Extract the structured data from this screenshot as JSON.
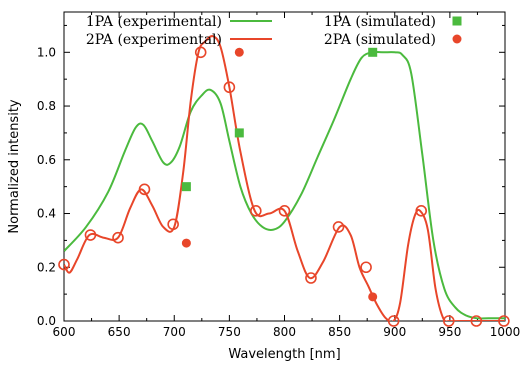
{
  "chart_data": {
    "type": "line",
    "xlabel": "Wavelength [nm]",
    "ylabel": "Normalized intensity",
    "xlim": [
      600,
      1000
    ],
    "ylim": [
      0,
      1.15
    ],
    "x_ticks": [
      "600",
      "650",
      "700",
      "750",
      "800",
      "850",
      "900",
      "950",
      "1000"
    ],
    "y_ticks": [
      "0.0",
      "0.2",
      "0.4",
      "0.6",
      "0.8",
      "1.0"
    ],
    "grid": false,
    "legend_position": "top",
    "colors": {
      "green": "#4bba3e",
      "orange": "#e8462a"
    },
    "series": [
      {
        "name": "1PA (experimental)",
        "kind": "line",
        "color": "#4bba3e",
        "x": [
          600,
          620,
          640,
          655,
          665,
          672,
          680,
          690,
          697,
          705,
          715,
          725,
          733,
          742,
          750,
          760,
          770,
          780,
          790,
          800,
          815,
          830,
          845,
          860,
          870,
          880,
          890,
          900,
          907,
          915,
          925,
          935,
          945,
          955,
          965,
          975,
          985,
          1000
        ],
        "y": [
          0.26,
          0.35,
          0.48,
          0.63,
          0.72,
          0.73,
          0.67,
          0.59,
          0.59,
          0.65,
          0.78,
          0.84,
          0.86,
          0.81,
          0.67,
          0.5,
          0.4,
          0.35,
          0.34,
          0.37,
          0.47,
          0.61,
          0.75,
          0.9,
          0.98,
          1.0,
          1.0,
          1.0,
          0.99,
          0.92,
          0.62,
          0.3,
          0.12,
          0.05,
          0.02,
          0.01,
          0.01,
          0.01
        ]
      },
      {
        "name": "2PA (experimental)",
        "kind": "line",
        "color": "#e8462a",
        "x": [
          600,
          605,
          612,
          623,
          636,
          649,
          660,
          670,
          680,
          690,
          700,
          708,
          715,
          722,
          728,
          735,
          742,
          750,
          760,
          773,
          786,
          800,
          812,
          823,
          835,
          850,
          860,
          868,
          876,
          884,
          892,
          899,
          905,
          912,
          918,
          923,
          930,
          937,
          944,
          950,
          960,
          975,
          1000
        ],
        "y": [
          0.21,
          0.18,
          0.23,
          0.32,
          0.31,
          0.31,
          0.42,
          0.49,
          0.43,
          0.35,
          0.35,
          0.55,
          0.82,
          1.0,
          1.04,
          1.06,
          1.02,
          0.87,
          0.63,
          0.41,
          0.4,
          0.41,
          0.26,
          0.16,
          0.22,
          0.35,
          0.32,
          0.2,
          0.13,
          0.06,
          0.01,
          0.0,
          0.07,
          0.28,
          0.39,
          0.41,
          0.34,
          0.12,
          0.01,
          0.0,
          0.0,
          0.0,
          0.0
        ]
      },
      {
        "name": "2PA (experimental) markers",
        "kind": "open-circles",
        "color": "#e8462a",
        "x": [
          600,
          624,
          649,
          673,
          699,
          724,
          750,
          774,
          800,
          824,
          849,
          874,
          899,
          924,
          949,
          974,
          999
        ],
        "y": [
          0.21,
          0.32,
          0.31,
          0.49,
          0.36,
          1.0,
          0.87,
          0.41,
          0.41,
          0.16,
          0.35,
          0.2,
          0.0,
          0.41,
          0.0,
          0.0,
          0.0
        ]
      },
      {
        "name": "1PA (simulated)",
        "kind": "squares",
        "color": "#4bba3e",
        "x": [
          711,
          759,
          880
        ],
        "y": [
          0.5,
          0.7,
          1.0
        ]
      },
      {
        "name": "2PA (simulated)",
        "kind": "filled-circles",
        "color": "#e8462a",
        "x": [
          711,
          759,
          880
        ],
        "y": [
          0.29,
          1.0,
          0.09
        ]
      }
    ],
    "legend": [
      {
        "label": "1PA (experimental)",
        "symbol": "line",
        "color": "#4bba3e"
      },
      {
        "label": "2PA (experimental)",
        "symbol": "line",
        "color": "#e8462a"
      },
      {
        "label": "1PA (simulated)",
        "symbol": "square",
        "color": "#4bba3e"
      },
      {
        "label": "2PA (simulated)",
        "symbol": "circle",
        "color": "#e8462a"
      }
    ]
  }
}
